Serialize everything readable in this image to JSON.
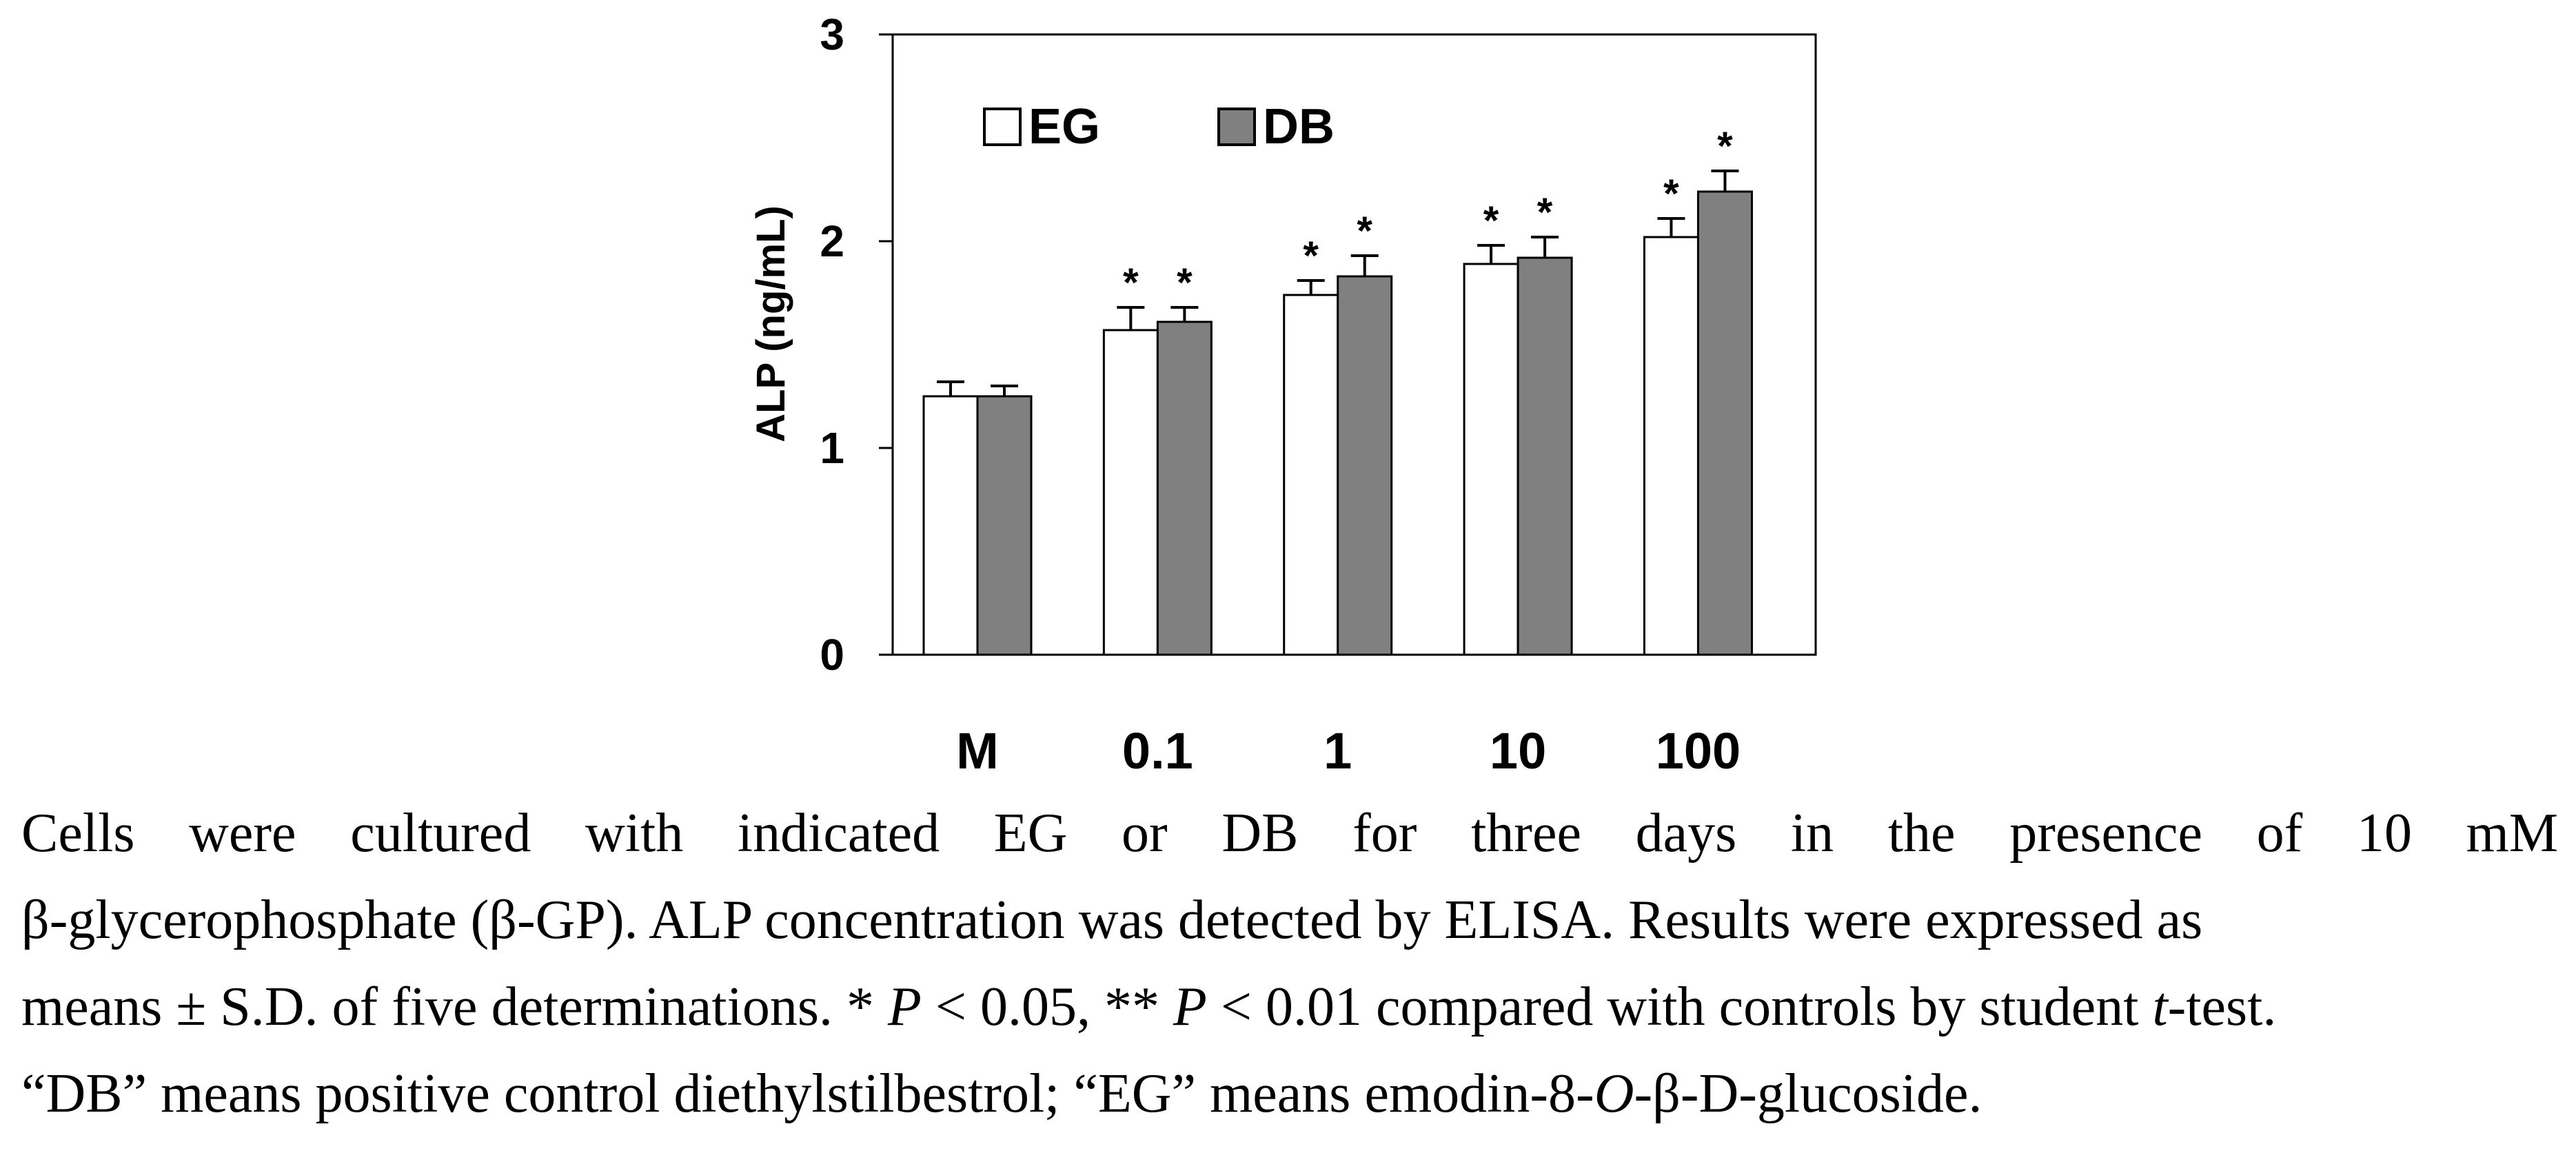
{
  "chart_data": {
    "type": "bar",
    "title": "",
    "xlabel": "",
    "ylabel": "ALP (ng/mL)",
    "ylim": [
      0,
      3
    ],
    "yticks": [
      "0",
      "1",
      "2",
      "3"
    ],
    "categories": [
      "M",
      "0.1",
      "1",
      "10",
      "100"
    ],
    "legend_position": "top-left",
    "series": [
      {
        "name": "EG",
        "color": "#ffffff",
        "values": [
          1.25,
          1.57,
          1.74,
          1.89,
          2.02
        ],
        "errors": [
          0.07,
          0.11,
          0.07,
          0.09,
          0.09
        ],
        "significance": [
          "",
          "*",
          "*",
          "*",
          "*"
        ]
      },
      {
        "name": "DB",
        "color": "#808080",
        "values": [
          1.25,
          1.61,
          1.83,
          1.92,
          2.24
        ],
        "errors": [
          0.05,
          0.07,
          0.1,
          0.1,
          0.1
        ],
        "significance": [
          "",
          "*",
          "*",
          "*",
          "*"
        ]
      }
    ]
  },
  "caption": {
    "line1": "Cells were cultured with indicated EG or DB for three days in the presence of 10 mM",
    "line2": "β-glycerophosphate (β-GP). ALP concentration was detected by ELISA. Results were expressed as",
    "line3_a": "means ± S.D. of five determinations. * ",
    "line3_p1": "P",
    "line3_b": " < 0.05, ** ",
    "line3_p2": "P",
    "line3_c": " < 0.01 compared with controls by student ",
    "line3_t": "t",
    "line3_d": "-test.",
    "line4_a": "“DB” means positive control diethylstilbestrol; “EG” means emodin-8-",
    "line4_o": "O",
    "line4_b": "-β-",
    "line4_d": "D",
    "line4_c": "-glucoside."
  }
}
